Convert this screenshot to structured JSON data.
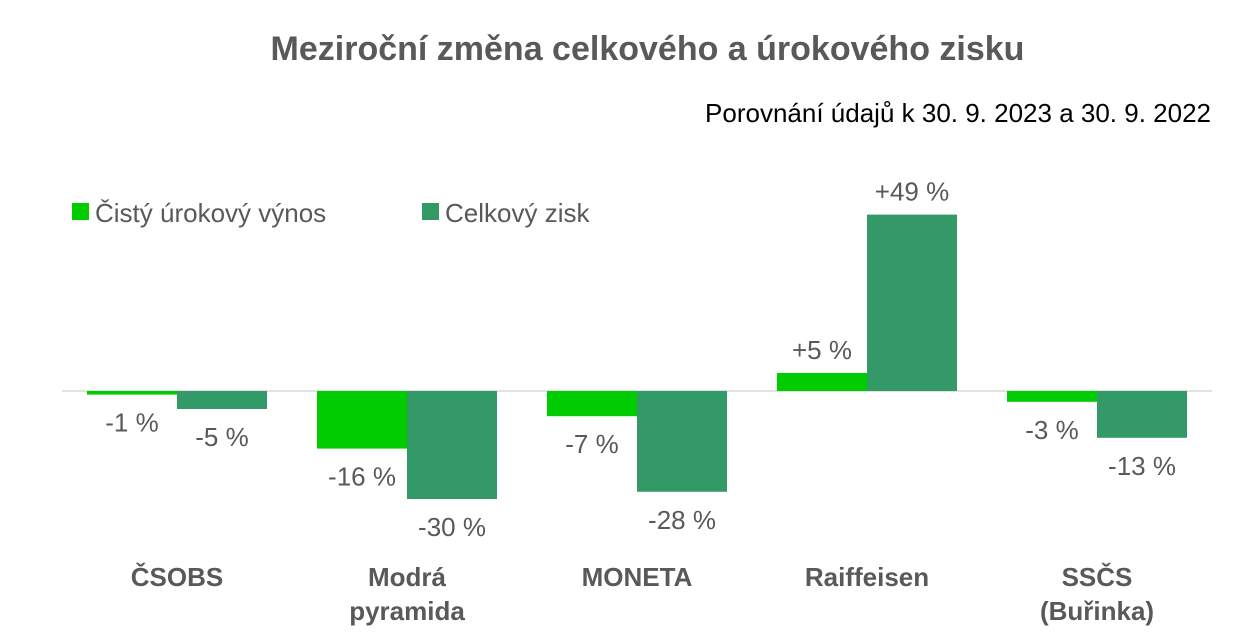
{
  "chart_data": {
    "type": "bar",
    "title": "Meziroční změna celkového a úrokového zisku",
    "subtitle": "Porovnání údajů k 30. 9. 2023 a 30. 9. 2022",
    "categories": [
      [
        "ČSOBS"
      ],
      [
        "Modrá",
        "pyramida"
      ],
      [
        "MONETA"
      ],
      [
        "Raiffeisen"
      ],
      [
        "SSČS",
        "(Buřinka)"
      ]
    ],
    "series": [
      {
        "name": "Čistý úrokový výnos",
        "color": "#00cc00",
        "values": [
          -1,
          -16,
          -7,
          5,
          -3
        ],
        "labels": [
          "-1 %",
          "-16 %",
          "-7 %",
          "+5 %",
          "-3 %"
        ]
      },
      {
        "name": "Celkový zisk",
        "color": "#339966",
        "values": [
          -5,
          -30,
          -28,
          49,
          -13
        ],
        "labels": [
          "-5 %",
          "-30 %",
          "-28 %",
          "+49 %",
          "-13 %"
        ]
      }
    ],
    "ylim": [
      -30,
      49
    ],
    "grid": false,
    "legend_position": "top-left",
    "xlabel": "",
    "ylabel": ""
  }
}
